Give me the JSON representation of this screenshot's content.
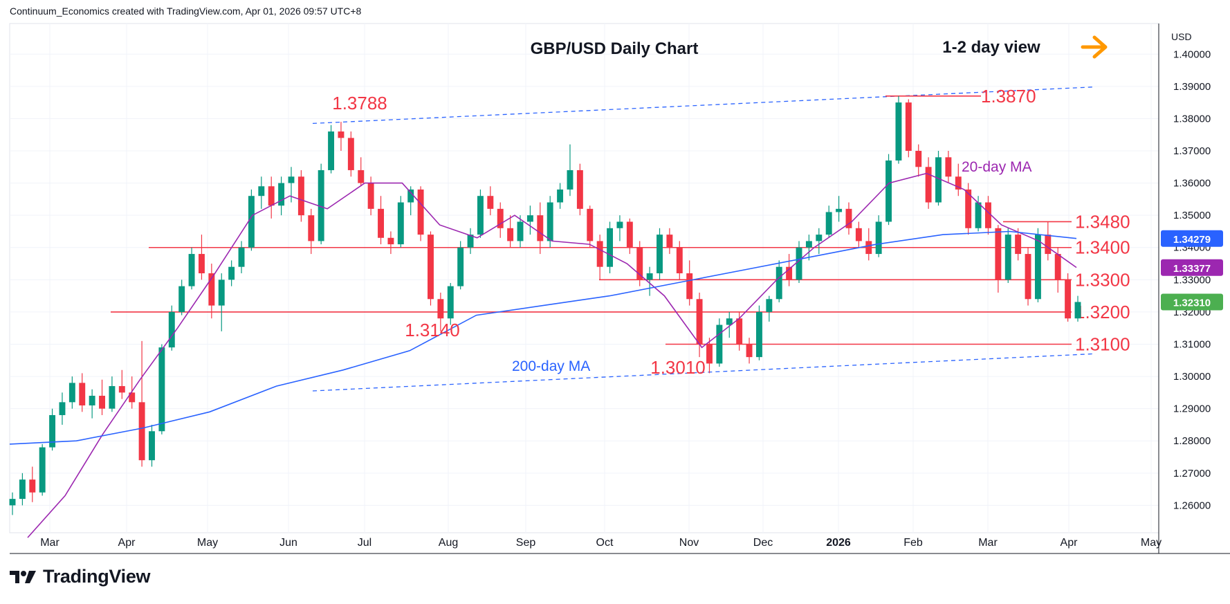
{
  "header": {
    "attribution": "Continuum_Economics created with TradingView.com, Apr 01, 2026 09:57 UTC+8"
  },
  "branding": {
    "name": "TradingView",
    "icon": "tradingview-logo-icon"
  },
  "annotations": {
    "view": "1-2 day view",
    "view_icon": "arrow-right-icon"
  },
  "colors": {
    "up": "#089981",
    "down": "#f23645",
    "level": "#f23645",
    "ma20": "#9c27b0",
    "ma200": "#2962ff",
    "trend": "#2962ff",
    "arrow": "#ff9800",
    "price_tag": "#4caf50"
  },
  "chart_data": {
    "type": "line",
    "title": "GBP/USD Daily Chart",
    "currency": "USD",
    "grid": true,
    "ylim": [
      1.2515,
      1.4095
    ],
    "yticks": [
      "1.26000",
      "1.27000",
      "1.28000",
      "1.29000",
      "1.30000",
      "1.31000",
      "1.32000",
      "1.33000",
      "1.34000",
      "1.35000",
      "1.36000",
      "1.37000",
      "1.38000",
      "1.39000",
      "1.40000"
    ],
    "xticks": [
      "Mar",
      "Apr",
      "May",
      "Jun",
      "Jul",
      "Aug",
      "Sep",
      "Oct",
      "Nov",
      "Dec",
      "2026",
      "Feb",
      "Mar",
      "Apr",
      "May"
    ],
    "horizontal_levels": [
      {
        "value": 1.387,
        "label": "1.3870"
      },
      {
        "value": 1.348,
        "label": "1.3480"
      },
      {
        "value": 1.34,
        "label": "1.3400"
      },
      {
        "value": 1.33,
        "label": "1.3300"
      },
      {
        "value": 1.32,
        "label": "1.3200"
      },
      {
        "value": 1.31,
        "label": "1.3100"
      }
    ],
    "swing_labels": [
      {
        "label": "1.3788",
        "value": 1.3788
      },
      {
        "label": "1.3140",
        "value": 1.314
      },
      {
        "label": "1.3010",
        "value": 1.301
      }
    ],
    "series": [
      {
        "name": "20-day MA",
        "last": "1.33377",
        "values": [
          1.25,
          1.263,
          1.282,
          1.299,
          1.315,
          1.332,
          1.35,
          1.356,
          1.352,
          1.36,
          1.36,
          1.347,
          1.343,
          1.35,
          1.342,
          1.341,
          1.335,
          1.325,
          1.309,
          1.318,
          1.33,
          1.34,
          1.348,
          1.36,
          1.363,
          1.358,
          1.347,
          1.342,
          1.3338
        ]
      },
      {
        "name": "200-day MA",
        "last": "1.34279",
        "values": [
          1.279,
          1.28,
          1.284,
          1.289,
          1.297,
          1.302,
          1.308,
          1.319,
          1.322,
          1.325,
          1.329,
          1.333,
          1.337,
          1.341,
          1.344,
          1.345,
          1.3428
        ]
      }
    ],
    "last_price": "1.32310",
    "ohlc": [
      [
        1.26,
        1.264,
        1.257,
        1.262
      ],
      [
        1.262,
        1.27,
        1.26,
        1.268
      ],
      [
        1.268,
        1.272,
        1.261,
        1.264
      ],
      [
        1.264,
        1.279,
        1.263,
        1.278
      ],
      [
        1.278,
        1.29,
        1.277,
        1.288
      ],
      [
        1.288,
        1.295,
        1.285,
        1.292
      ],
      [
        1.292,
        1.3,
        1.29,
        1.298
      ],
      [
        1.298,
        1.301,
        1.289,
        1.291
      ],
      [
        1.291,
        1.296,
        1.287,
        1.294
      ],
      [
        1.294,
        1.299,
        1.288,
        1.29
      ],
      [
        1.29,
        1.3,
        1.289,
        1.297
      ],
      [
        1.297,
        1.302,
        1.293,
        1.295
      ],
      [
        1.295,
        1.3,
        1.29,
        1.292
      ],
      [
        1.292,
        1.311,
        1.272,
        1.274
      ],
      [
        1.274,
        1.285,
        1.272,
        1.283
      ],
      [
        1.283,
        1.31,
        1.282,
        1.309
      ],
      [
        1.309,
        1.322,
        1.308,
        1.32
      ],
      [
        1.32,
        1.33,
        1.319,
        1.328
      ],
      [
        1.328,
        1.34,
        1.327,
        1.338
      ],
      [
        1.338,
        1.344,
        1.33,
        1.332
      ],
      [
        1.332,
        1.335,
        1.318,
        1.322
      ],
      [
        1.322,
        1.332,
        1.314,
        1.33
      ],
      [
        1.33,
        1.336,
        1.328,
        1.334
      ],
      [
        1.334,
        1.342,
        1.332,
        1.34
      ],
      [
        1.34,
        1.358,
        1.339,
        1.356
      ],
      [
        1.356,
        1.362,
        1.352,
        1.359
      ],
      [
        1.359,
        1.362,
        1.349,
        1.353
      ],
      [
        1.353,
        1.362,
        1.35,
        1.36
      ],
      [
        1.36,
        1.365,
        1.354,
        1.362
      ],
      [
        1.362,
        1.364,
        1.348,
        1.35
      ],
      [
        1.35,
        1.352,
        1.338,
        1.342
      ],
      [
        1.342,
        1.366,
        1.341,
        1.364
      ],
      [
        1.364,
        1.378,
        1.363,
        1.376
      ],
      [
        1.376,
        1.379,
        1.37,
        1.374
      ],
      [
        1.374,
        1.376,
        1.362,
        1.364
      ],
      [
        1.364,
        1.368,
        1.359,
        1.36
      ],
      [
        1.36,
        1.362,
        1.35,
        1.352
      ],
      [
        1.352,
        1.356,
        1.341,
        1.343
      ],
      [
        1.343,
        1.345,
        1.338,
        1.341
      ],
      [
        1.341,
        1.356,
        1.34,
        1.354
      ],
      [
        1.354,
        1.359,
        1.35,
        1.358
      ],
      [
        1.358,
        1.359,
        1.342,
        1.344
      ],
      [
        1.344,
        1.345,
        1.322,
        1.324
      ],
      [
        1.324,
        1.326,
        1.314,
        1.318
      ],
      [
        1.318,
        1.329,
        1.316,
        1.328
      ],
      [
        1.328,
        1.342,
        1.327,
        1.34
      ],
      [
        1.34,
        1.346,
        1.338,
        1.344
      ],
      [
        1.344,
        1.358,
        1.343,
        1.356
      ],
      [
        1.356,
        1.359,
        1.35,
        1.352
      ],
      [
        1.352,
        1.354,
        1.343,
        1.346
      ],
      [
        1.346,
        1.35,
        1.34,
        1.342
      ],
      [
        1.342,
        1.35,
        1.34,
        1.348
      ],
      [
        1.348,
        1.353,
        1.344,
        1.35
      ],
      [
        1.35,
        1.354,
        1.338,
        1.342
      ],
      [
        1.342,
        1.356,
        1.34,
        1.354
      ],
      [
        1.354,
        1.36,
        1.352,
        1.358
      ],
      [
        1.358,
        1.372,
        1.356,
        1.364
      ],
      [
        1.364,
        1.366,
        1.35,
        1.352
      ],
      [
        1.352,
        1.353,
        1.34,
        1.342
      ],
      [
        1.342,
        1.344,
        1.33,
        1.334
      ],
      [
        1.334,
        1.348,
        1.332,
        1.346
      ],
      [
        1.346,
        1.35,
        1.342,
        1.348
      ],
      [
        1.348,
        1.349,
        1.338,
        1.34
      ],
      [
        1.34,
        1.342,
        1.328,
        1.33
      ],
      [
        1.33,
        1.334,
        1.325,
        1.332
      ],
      [
        1.332,
        1.346,
        1.33,
        1.344
      ],
      [
        1.344,
        1.346,
        1.338,
        1.34
      ],
      [
        1.34,
        1.342,
        1.33,
        1.332
      ],
      [
        1.332,
        1.336,
        1.322,
        1.324
      ],
      [
        1.324,
        1.326,
        1.306,
        1.31
      ],
      [
        1.31,
        1.312,
        1.301,
        1.304
      ],
      [
        1.304,
        1.318,
        1.303,
        1.316
      ],
      [
        1.316,
        1.32,
        1.312,
        1.318
      ],
      [
        1.318,
        1.32,
        1.308,
        1.31
      ],
      [
        1.31,
        1.312,
        1.304,
        1.306
      ],
      [
        1.306,
        1.322,
        1.305,
        1.32
      ],
      [
        1.32,
        1.325,
        1.317,
        1.324
      ],
      [
        1.324,
        1.336,
        1.323,
        1.334
      ],
      [
        1.334,
        1.338,
        1.328,
        1.33
      ],
      [
        1.33,
        1.342,
        1.329,
        1.34
      ],
      [
        1.34,
        1.344,
        1.336,
        1.342
      ],
      [
        1.342,
        1.346,
        1.338,
        1.344
      ],
      [
        1.344,
        1.353,
        1.343,
        1.351
      ],
      [
        1.351,
        1.356,
        1.348,
        1.352
      ],
      [
        1.352,
        1.354,
        1.344,
        1.346
      ],
      [
        1.346,
        1.348,
        1.34,
        1.342
      ],
      [
        1.342,
        1.346,
        1.336,
        1.338
      ],
      [
        1.338,
        1.35,
        1.337,
        1.348
      ],
      [
        1.348,
        1.369,
        1.347,
        1.367
      ],
      [
        1.367,
        1.387,
        1.366,
        1.385
      ],
      [
        1.385,
        1.386,
        1.368,
        1.37
      ],
      [
        1.37,
        1.372,
        1.362,
        1.365
      ],
      [
        1.365,
        1.368,
        1.352,
        1.354
      ],
      [
        1.354,
        1.37,
        1.353,
        1.368
      ],
      [
        1.368,
        1.37,
        1.36,
        1.362
      ],
      [
        1.362,
        1.366,
        1.356,
        1.358
      ],
      [
        1.358,
        1.36,
        1.344,
        1.346
      ],
      [
        1.346,
        1.356,
        1.345,
        1.354
      ],
      [
        1.354,
        1.356,
        1.344,
        1.346
      ],
      [
        1.346,
        1.347,
        1.326,
        1.33
      ],
      [
        1.33,
        1.346,
        1.329,
        1.344
      ],
      [
        1.344,
        1.346,
        1.336,
        1.338
      ],
      [
        1.338,
        1.34,
        1.322,
        1.324
      ],
      [
        1.324,
        1.346,
        1.323,
        1.344
      ],
      [
        1.344,
        1.348,
        1.336,
        1.338
      ],
      [
        1.338,
        1.34,
        1.326,
        1.33
      ],
      [
        1.33,
        1.332,
        1.317,
        1.318
      ],
      [
        1.318,
        1.325,
        1.317,
        1.3231
      ]
    ]
  }
}
